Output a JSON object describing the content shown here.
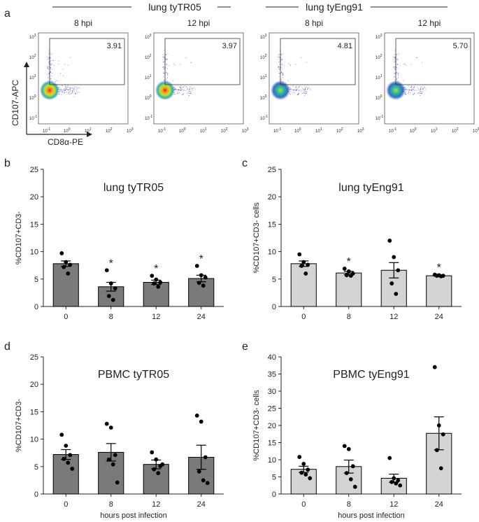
{
  "panel_a": {
    "letter": "a",
    "group_left": "lung tyTR05",
    "group_right": "lung tyEng91",
    "x_axis_label": "CD8α-PE",
    "y_axis_label": "CD107-APC",
    "tick_base": "10",
    "tick_exponents": [
      "-1",
      "0",
      "1",
      "2",
      "3"
    ],
    "plots": [
      {
        "title": "8 hpi",
        "gate_value": "3.91",
        "hot": true
      },
      {
        "title": "12 hpi",
        "gate_value": "3.97",
        "hot": true
      },
      {
        "title": "8 hpi",
        "gate_value": "4.81",
        "hot": false
      },
      {
        "title": "12 hpi",
        "gate_value": "5.70",
        "hot": false
      }
    ]
  },
  "colors": {
    "bar_dark": "#7a7a7a",
    "bar_light": "#d4d4d4",
    "bar_edge": "#000000",
    "dot": "#000000",
    "axis": "#222222"
  },
  "chart_data": [
    {
      "panel": "b",
      "type": "bar",
      "title": "lung tyTR05",
      "ylabel": "%CD107+CD3-",
      "xlabel": "",
      "categories": [
        "0",
        "8",
        "12",
        "24"
      ],
      "values": [
        7.8,
        3.6,
        4.4,
        5.1
      ],
      "sem": [
        0.5,
        0.8,
        0.4,
        0.6
      ],
      "points": [
        [
          9.7,
          8.1,
          7.6,
          7.2,
          6.0
        ],
        [
          6.6,
          4.2,
          3.3,
          1.9,
          1.2
        ],
        [
          5.6,
          4.9,
          4.4,
          4.2,
          3.6
        ],
        [
          7.4,
          5.7,
          5.3,
          4.3,
          3.8
        ]
      ],
      "significance": [
        "",
        "*",
        "*",
        "*"
      ],
      "ylim": [
        0,
        25
      ],
      "yticks": [
        "0",
        "5",
        "10",
        "15",
        "20",
        "25"
      ],
      "bar_color": "dark"
    },
    {
      "panel": "c",
      "type": "bar",
      "title": "lung tyEng91",
      "ylabel": "%CD107+CD3- cells",
      "xlabel": "",
      "categories": [
        "0",
        "8",
        "12",
        "24"
      ],
      "values": [
        7.8,
        6.1,
        6.6,
        5.6
      ],
      "sem": [
        0.5,
        0.3,
        1.4,
        0.1
      ],
      "points": [
        [
          9.5,
          8.1,
          7.6,
          7.4,
          6.0
        ],
        [
          6.9,
          6.4,
          6.0,
          5.7,
          5.6
        ],
        [
          12.0,
          9.0,
          6.6,
          4.2,
          2.3
        ],
        [
          5.8,
          5.7,
          5.6,
          5.6,
          5.5
        ]
      ],
      "significance": [
        "",
        "*",
        "",
        "*"
      ],
      "ylim": [
        0,
        25
      ],
      "yticks": [
        "0",
        "5",
        "10",
        "15",
        "20",
        "25"
      ],
      "bar_color": "light"
    },
    {
      "panel": "d",
      "type": "bar",
      "title": "PBMC tyTR05",
      "ylabel": "%CD107+CD3-",
      "xlabel": "hours post infection",
      "categories": [
        "0",
        "8",
        "12",
        "24"
      ],
      "values": [
        7.2,
        7.6,
        5.4,
        6.7
      ],
      "sem": [
        0.9,
        1.6,
        0.8,
        2.2
      ],
      "points": [
        [
          10.8,
          8.8,
          7.1,
          6.4,
          5.7,
          4.6
        ],
        [
          12.8,
          12.1,
          7.1,
          6.3,
          5.4,
          2.1
        ],
        [
          7.6,
          6.3,
          5.1,
          4.5,
          3.8,
          5.4
        ],
        [
          14.3,
          13.2,
          6.7,
          4.1,
          2.5,
          2.0
        ]
      ],
      "significance": [
        "",
        "",
        "",
        ""
      ],
      "ylim": [
        0,
        25
      ],
      "yticks": [
        "0",
        "5",
        "10",
        "15",
        "20",
        "25"
      ],
      "bar_color": "dark"
    },
    {
      "panel": "e",
      "type": "bar",
      "title": "PBMC tyEng91",
      "ylabel": "%CD107+CD3- cells",
      "xlabel": "hours post infection",
      "categories": [
        "0",
        "8",
        "12",
        "24"
      ],
      "values": [
        7.2,
        8.0,
        4.6,
        17.7
      ],
      "sem": [
        0.9,
        1.9,
        1.2,
        4.8
      ],
      "points": [
        [
          10.8,
          8.8,
          7.1,
          6.2,
          5.7,
          4.6
        ],
        [
          14.0,
          13.1,
          8.1,
          6.1,
          4.3,
          2.1
        ],
        [
          10.5,
          4.6,
          4.0,
          3.5,
          3.1,
          2.5
        ],
        [
          37.0,
          20.0,
          17.4,
          12.8,
          7.5
        ]
      ],
      "significance": [
        "",
        "",
        "",
        ""
      ],
      "ylim": [
        0,
        40
      ],
      "yticks": [
        "0",
        "5",
        "10",
        "15",
        "20",
        "25",
        "30",
        "35",
        "40"
      ],
      "bar_color": "light"
    }
  ]
}
